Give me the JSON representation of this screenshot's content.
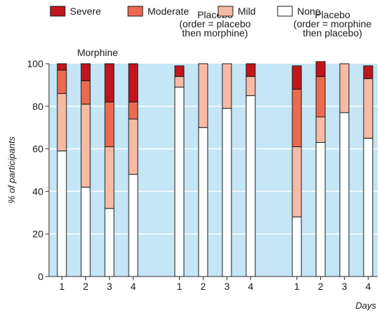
{
  "chart_data": {
    "type": "bar",
    "stacked": true,
    "ylabel": "% of participants",
    "xlabel": "Days",
    "ylim": [
      0,
      100
    ],
    "yticks": [
      0,
      20,
      40,
      60,
      80,
      100
    ],
    "grid": true,
    "legend_position": "top-left",
    "legend": [
      {
        "key": "severe",
        "label": "Severe",
        "color": "#c0161c"
      },
      {
        "key": "moderate",
        "label": "Moderate",
        "color": "#ec6a4f"
      },
      {
        "key": "mild",
        "label": "Mild",
        "color": "#f7bba5"
      },
      {
        "key": "none",
        "label": "None",
        "color": "#ffffff"
      }
    ],
    "plot_background": "#c4e6f6",
    "groups": [
      {
        "title": [
          "Morphine"
        ],
        "days": [
          "1",
          "2",
          "3",
          "4"
        ],
        "none": [
          59,
          42,
          32,
          48
        ],
        "mild": [
          27,
          39,
          29,
          26
        ],
        "moderate": [
          11,
          11,
          21,
          8
        ],
        "severe": [
          3,
          8,
          18,
          18
        ]
      },
      {
        "title": [
          "Placebo",
          "(order = placebo",
          "then morphine)"
        ],
        "days": [
          "1",
          "2",
          "3",
          "4"
        ],
        "none": [
          89,
          70,
          79,
          85
        ],
        "mild": [
          5,
          30,
          21,
          9
        ],
        "moderate": [
          0,
          0,
          0,
          0
        ],
        "severe": [
          5,
          0,
          0,
          6
        ]
      },
      {
        "title": [
          "Placebo",
          "(order = morphine",
          "then placebo)"
        ],
        "days": [
          "1",
          "2",
          "3",
          "4"
        ],
        "none": [
          28,
          63,
          77,
          65
        ],
        "mild": [
          33,
          12,
          23,
          28
        ],
        "moderate": [
          27,
          19,
          0,
          0
        ],
        "severe": [
          11,
          7,
          0,
          6
        ]
      }
    ]
  }
}
